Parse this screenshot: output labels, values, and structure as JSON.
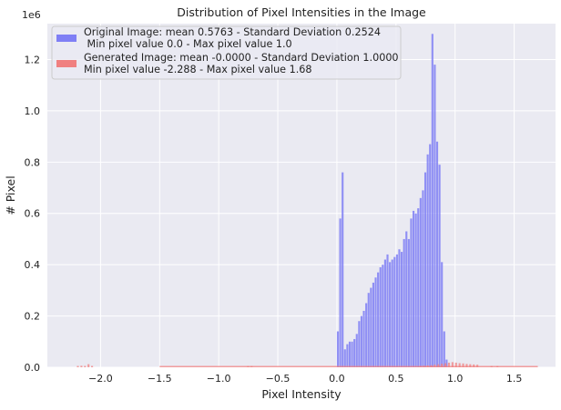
{
  "chart_data": {
    "type": "bar",
    "title": "Distribution of Pixel Intensities in the Image",
    "xlabel": "Pixel Intensity",
    "ylabel": "# Pixel",
    "y_offset_label": "1e6",
    "xlim": [
      -2.45,
      1.85
    ],
    "ylim": [
      0,
      1.34
    ],
    "x_ticks": [
      -2.0,
      -1.5,
      -1.0,
      -0.5,
      0.0,
      0.5,
      1.0,
      1.5
    ],
    "x_tick_labels": [
      "−2.0",
      "−1.5",
      "−1.0",
      "−0.5",
      "0.0",
      "0.5",
      "1.0",
      "1.5"
    ],
    "y_ticks": [
      0.0,
      0.2,
      0.4,
      0.6,
      0.8,
      1.0,
      1.2
    ],
    "y_tick_labels": [
      "0.0",
      "0.2",
      "0.4",
      "0.6",
      "0.8",
      "1.0",
      "1.2"
    ],
    "grid": true,
    "legend_position": "top-left",
    "bar_width": 0.0165,
    "series": [
      {
        "name": "Original Image: mean 0.5763 - Standard Deviation 0.2524\n Min pixel value 0.0 - Max pixel value 1.0",
        "color": "#7f7ff5",
        "x": [
          0.0,
          0.02,
          0.04,
          0.06,
          0.08,
          0.1,
          0.12,
          0.14,
          0.16,
          0.18,
          0.2,
          0.22,
          0.24,
          0.26,
          0.28,
          0.3,
          0.32,
          0.34,
          0.36,
          0.38,
          0.4,
          0.42,
          0.44,
          0.46,
          0.48,
          0.5,
          0.52,
          0.54,
          0.56,
          0.58,
          0.6,
          0.62,
          0.64,
          0.66,
          0.68,
          0.7,
          0.72,
          0.74,
          0.76,
          0.78,
          0.8,
          0.82,
          0.84,
          0.86,
          0.88,
          0.9,
          0.92
        ],
        "values": [
          0.14,
          0.58,
          0.76,
          0.07,
          0.09,
          0.1,
          0.1,
          0.11,
          0.13,
          0.18,
          0.2,
          0.22,
          0.25,
          0.29,
          0.31,
          0.33,
          0.35,
          0.37,
          0.39,
          0.4,
          0.42,
          0.44,
          0.41,
          0.42,
          0.43,
          0.44,
          0.46,
          0.45,
          0.5,
          0.53,
          0.5,
          0.58,
          0.61,
          0.6,
          0.62,
          0.66,
          0.69,
          0.76,
          0.83,
          0.87,
          1.3,
          1.18,
          0.88,
          0.79,
          0.41,
          0.14,
          0.03
        ]
      },
      {
        "name": "Generated Image: mean -0.0000 - Standard Deviation 1.0000\nMin pixel value -2.288 - Max pixel value 1.68",
        "color": "#f08080",
        "x": [
          -2.2,
          -2.17,
          -2.14,
          -2.11,
          -2.08,
          -0.76,
          -0.73,
          0.7,
          0.73,
          0.76,
          0.79,
          0.82,
          0.85,
          0.88,
          0.91,
          0.94,
          0.97,
          1.0,
          1.03,
          1.06,
          1.09,
          1.12,
          1.15,
          1.18,
          1.3,
          1.35
        ],
        "values": [
          0.003,
          0.006,
          0.005,
          0.012,
          0.005,
          0.003,
          0.004,
          0.004,
          0.006,
          0.007,
          0.008,
          0.01,
          0.012,
          0.014,
          0.016,
          0.018,
          0.02,
          0.018,
          0.016,
          0.015,
          0.013,
          0.012,
          0.011,
          0.01,
          0.005,
          0.003
        ],
        "thin_line_range": [
          -1.5,
          1.7
        ]
      }
    ]
  }
}
